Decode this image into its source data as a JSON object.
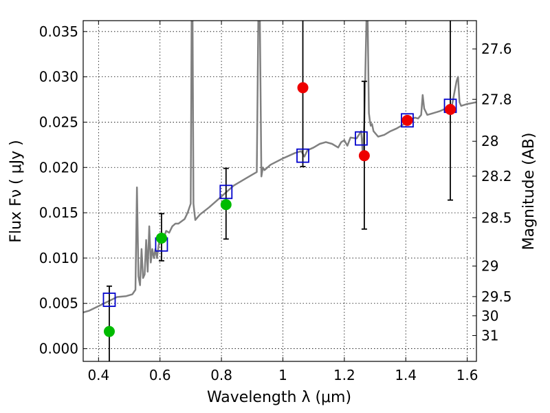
{
  "chart_data": {
    "type": "scatter",
    "title": "",
    "xlabel": "Wavelength  λ (μm)",
    "ylabel": "Flux  Fν  ( μJy )",
    "ylabel_right": "Magnitude (AB)",
    "xlim": [
      0.35,
      1.63
    ],
    "ylim": [
      -0.0014,
      0.0362
    ],
    "grid": true,
    "x_ticks": [
      0.4,
      0.6,
      0.8,
      1.0,
      1.2,
      1.4,
      1.6
    ],
    "x_tick_labels": [
      "0.4",
      "0.6",
      "0.8",
      "1",
      "1.2",
      "1.4",
      "1.6"
    ],
    "y_ticks": [
      0.0,
      0.005,
      0.01,
      0.015,
      0.02,
      0.025,
      0.03,
      0.035
    ],
    "y_tick_labels": [
      "0.000",
      "0.005",
      "0.010",
      "0.015",
      "0.020",
      "0.025",
      "0.030",
      "0.035"
    ],
    "right_ticks": [
      {
        "label": "27.6",
        "flux": 0.03308
      },
      {
        "label": "27.8",
        "flux": 0.02752
      },
      {
        "label": "28",
        "flux": 0.02289
      },
      {
        "label": "28.2",
        "flux": 0.01904
      },
      {
        "label": "28.5",
        "flux": 0.01445
      },
      {
        "label": "29",
        "flux": 0.00912
      },
      {
        "label": "29.5",
        "flux": 0.00575
      },
      {
        "label": "30",
        "flux": 0.00363
      },
      {
        "label": "31",
        "flux": 0.00145
      }
    ],
    "series": [
      {
        "kind": "line",
        "color": "#808080",
        "x": [
          0.35,
          0.37,
          0.4,
          0.43,
          0.46,
          0.49,
          0.51,
          0.52,
          0.525,
          0.528,
          0.53,
          0.535,
          0.54,
          0.545,
          0.55,
          0.555,
          0.56,
          0.565,
          0.57,
          0.575,
          0.58,
          0.585,
          0.59,
          0.6,
          0.61,
          0.62,
          0.63,
          0.64,
          0.65,
          0.66,
          0.68,
          0.69,
          0.7,
          0.703,
          0.706,
          0.709,
          0.712,
          0.715,
          0.73,
          0.76,
          0.78,
          0.8,
          0.82,
          0.84,
          0.86,
          0.88,
          0.9,
          0.915,
          0.92,
          0.925,
          0.93,
          0.935,
          0.94,
          0.96,
          1.0,
          1.02,
          1.04,
          1.06,
          1.07,
          1.08,
          1.1,
          1.12,
          1.14,
          1.16,
          1.18,
          1.19,
          1.2,
          1.21,
          1.22,
          1.24,
          1.255,
          1.26,
          1.265,
          1.272,
          1.276,
          1.28,
          1.283,
          1.286,
          1.29,
          1.295,
          1.31,
          1.33,
          1.35,
          1.37,
          1.39,
          1.41,
          1.43,
          1.44,
          1.45,
          1.455,
          1.46,
          1.47,
          1.49,
          1.51,
          1.53,
          1.55,
          1.565,
          1.57,
          1.575,
          1.58,
          1.6,
          1.63
        ],
        "y": [
          0.004,
          0.0042,
          0.0047,
          0.0052,
          0.0057,
          0.0058,
          0.006,
          0.0065,
          0.0178,
          0.012,
          0.008,
          0.007,
          0.011,
          0.0078,
          0.0082,
          0.012,
          0.0085,
          0.0135,
          0.0095,
          0.011,
          0.01,
          0.011,
          0.01,
          0.0125,
          0.012,
          0.013,
          0.0128,
          0.0135,
          0.0138,
          0.0138,
          0.0143,
          0.015,
          0.016,
          0.0362,
          0.0362,
          0.016,
          0.015,
          0.0142,
          0.0148,
          0.0156,
          0.0162,
          0.0168,
          0.0174,
          0.018,
          0.0184,
          0.0188,
          0.0192,
          0.0195,
          0.0362,
          0.0362,
          0.019,
          0.02,
          0.0197,
          0.0203,
          0.021,
          0.0213,
          0.0216,
          0.0218,
          0.0212,
          0.0219,
          0.0222,
          0.0226,
          0.0228,
          0.0226,
          0.0222,
          0.0228,
          0.023,
          0.0224,
          0.0233,
          0.0232,
          0.024,
          0.0215,
          0.025,
          0.0362,
          0.0362,
          0.026,
          0.0252,
          0.0246,
          0.0248,
          0.024,
          0.0234,
          0.0236,
          0.024,
          0.0243,
          0.0247,
          0.0252,
          0.0255,
          0.0254,
          0.0258,
          0.028,
          0.0265,
          0.0258,
          0.026,
          0.0262,
          0.0265,
          0.0268,
          0.0295,
          0.03,
          0.0272,
          0.0268,
          0.027,
          0.0272
        ]
      },
      {
        "kind": "open-square",
        "color": "#0000cc",
        "x": [
          0.435,
          0.605,
          0.815,
          1.065,
          1.255,
          1.405,
          1.545
        ],
        "y": [
          0.0054,
          0.0115,
          0.0173,
          0.0213,
          0.0232,
          0.0252,
          0.0268
        ]
      },
      {
        "kind": "errorbar",
        "color": "#000000",
        "x": [
          0.435,
          0.605,
          0.815,
          1.065,
          1.265,
          1.545
        ],
        "y": [
          0.0019,
          0.0122,
          0.0159,
          0.0288,
          0.0213,
          0.0264
        ],
        "yerr_low": [
          0.004,
          0.0025,
          0.0038,
          0.0087,
          0.0081,
          0.01
        ],
        "yerr_high": [
          0.005,
          0.0027,
          0.004,
          0.008,
          0.0082,
          0.01
        ]
      },
      {
        "kind": "filled-circle",
        "color": "#00bb00",
        "x": [
          0.435,
          0.605,
          0.815
        ],
        "y": [
          0.0019,
          0.0122,
          0.0159
        ]
      },
      {
        "kind": "filled-circle",
        "color": "#ee0000",
        "x": [
          1.065,
          1.265,
          1.405,
          1.545
        ],
        "y": [
          0.0288,
          0.0213,
          0.0252,
          0.0264
        ]
      }
    ]
  }
}
